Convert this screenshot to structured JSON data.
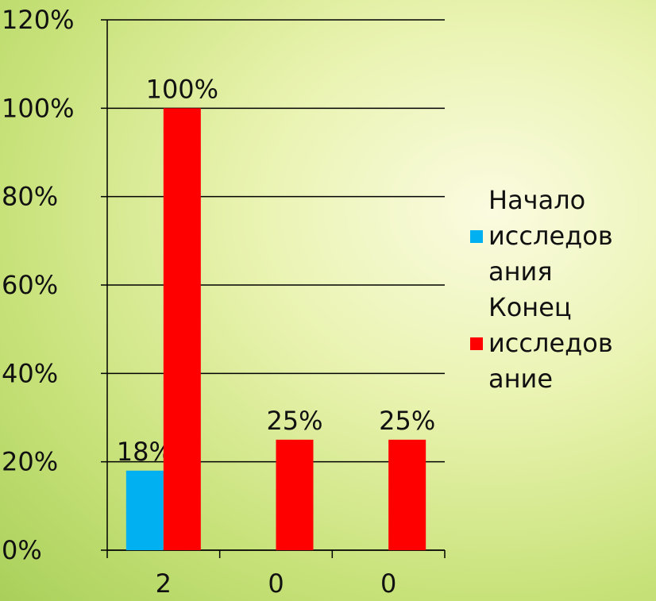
{
  "chart_data": {
    "type": "bar",
    "categories": [
      "2",
      "0",
      "0"
    ],
    "series": [
      {
        "name": "Начало исследования",
        "color": "#00b0f0",
        "values": [
          18,
          null,
          null
        ],
        "value_labels": [
          "18%",
          null,
          null
        ]
      },
      {
        "name": "Конец исследование",
        "color": "#ff0000",
        "values": [
          100,
          25,
          25
        ],
        "value_labels": [
          "100%",
          "25%",
          "25%"
        ]
      }
    ],
    "ylim": [
      0,
      120
    ],
    "yticks": [
      {
        "value": 0,
        "label": "0%"
      },
      {
        "value": 20,
        "label": "20%"
      },
      {
        "value": 40,
        "label": "40%"
      },
      {
        "value": 60,
        "label": "60%"
      },
      {
        "value": 80,
        "label": "80%"
      },
      {
        "value": 100,
        "label": "100%"
      },
      {
        "value": 120,
        "label": "120%"
      }
    ],
    "grid": true,
    "legend": "right"
  }
}
